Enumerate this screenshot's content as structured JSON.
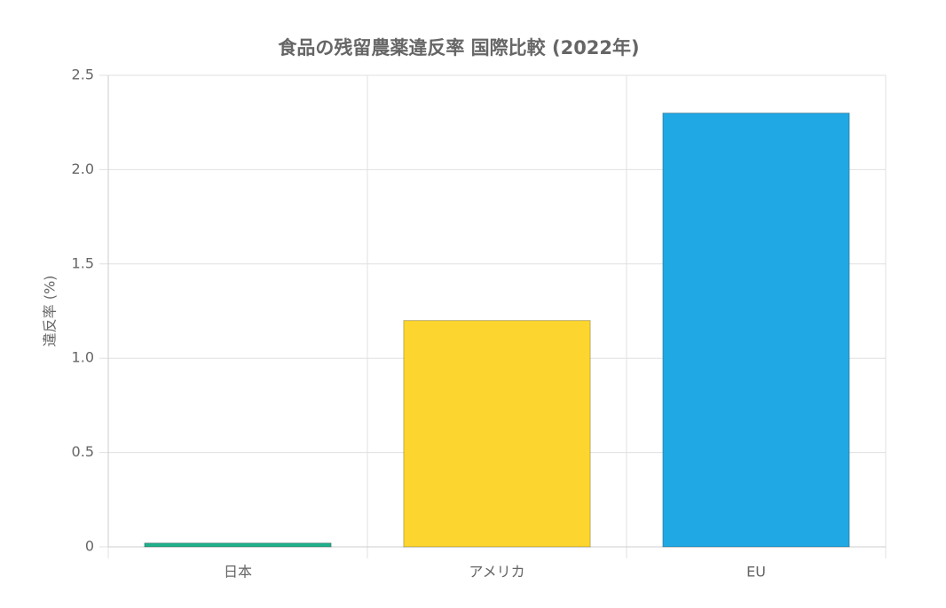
{
  "chart_data": {
    "type": "bar",
    "title": "食品の残留農薬違反率 国際比較 (2022年)",
    "y_label": "違反率 (%)",
    "categories": [
      "日本",
      "アメリカ",
      "EU"
    ],
    "values": [
      0.02,
      1.2,
      2.3
    ],
    "colors": [
      "#1fb08c",
      "#fcd62f",
      "#1fa8e4"
    ],
    "ylim": [
      0,
      2.5
    ],
    "yticks": [
      0,
      0.5,
      {
        "value": 1,
        "label": "1.0"
      },
      1.5,
      {
        "value": 2,
        "label": "2.0"
      },
      2.5
    ],
    "grid": true
  }
}
